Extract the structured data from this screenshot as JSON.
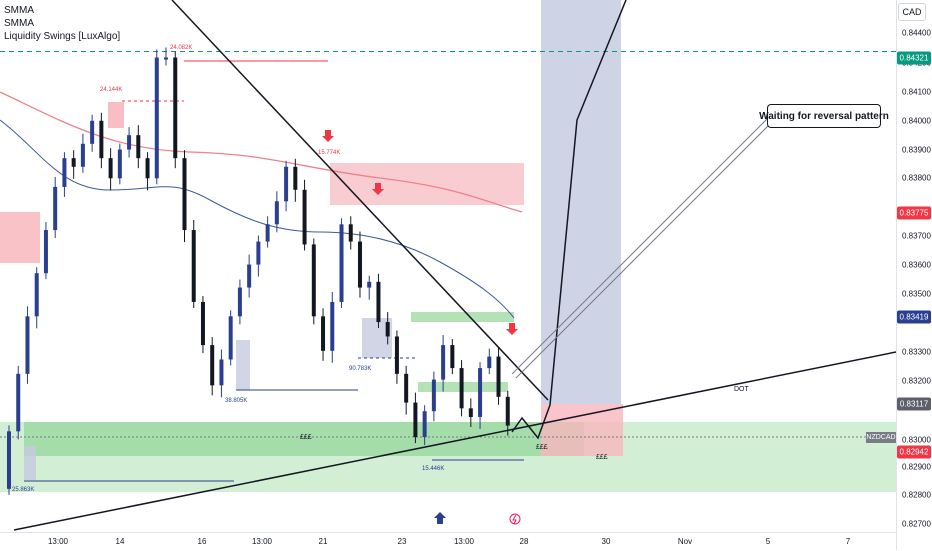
{
  "legend": {
    "line1": "SMMA",
    "line2": "SMMA",
    "line3": "Liquidity Swings [LuxAlgo]"
  },
  "callout": {
    "text": "Waiting for reversal pattern"
  },
  "price_axis": {
    "currency": "CAD",
    "ticks": [
      "0.84400",
      "0.84200",
      "0.84100",
      "0.84000",
      "0.83900",
      "0.83800",
      "0.83700",
      "0.83600",
      "0.83500",
      "0.83300",
      "0.83200",
      "0.83000",
      "0.82900",
      "0.82800",
      "0.82700"
    ],
    "badges": [
      {
        "label": "0.84321",
        "color": "#089981"
      },
      {
        "label": "0.83775",
        "color": "#f23645"
      },
      {
        "label": "0.83419",
        "color": "#2a3f8f"
      },
      {
        "label": "0.83117",
        "color": "#5d606b"
      },
      {
        "label": "0.82942",
        "color": "#f23645"
      }
    ]
  },
  "time_axis": {
    "labels": [
      "13:00",
      "14",
      "16",
      "13:00",
      "21",
      "23",
      "13:00",
      "28",
      "30",
      "Nov",
      "5",
      "7"
    ]
  },
  "annotations": {
    "swing_highs": [
      "24.082K",
      "24.144K",
      "15.774K"
    ],
    "swing_lows": [
      "38.805K",
      "90.783K",
      "25.863K",
      "15.446K"
    ],
    "liquidity_marks": [
      "£££",
      "£££",
      "£££"
    ],
    "trendline_label": "DOT",
    "symbol": "NZDCAD"
  },
  "colors": {
    "bull": "#2a3f8f",
    "bear": "#131722",
    "smma_red": "#f0808a",
    "smma_blue": "#3d5a99",
    "supply_zone": "#f7b7bd",
    "demand_zone": "#7fcf86",
    "projection": "#c6cbe0"
  },
  "chart_data": {
    "type": "candlestick",
    "symbol": "NZDCAD",
    "price_range": [
      0.8265,
      0.845
    ],
    "ohlc_path": [
      0.828,
      0.83,
      0.832,
      0.834,
      0.8355,
      0.837,
      0.8385,
      0.8395,
      0.8392,
      0.84,
      0.8408,
      0.8395,
      0.8388,
      0.8398,
      0.8403,
      0.8395,
      0.8388,
      0.843,
      0.843,
      0.8395,
      0.837,
      0.8345,
      0.833,
      0.8316,
      0.8325,
      0.834,
      0.835,
      0.8358,
      0.8366,
      0.8372,
      0.838,
      0.8392,
      0.8384,
      0.8365,
      0.834,
      0.8328,
      0.8345,
      0.8372,
      0.8366,
      0.835,
      0.8352,
      0.8338,
      0.8333,
      0.832,
      0.831,
      0.8298,
      0.8307,
      0.8318,
      0.833,
      0.8322,
      0.8308,
      0.8305,
      0.8322,
      0.8326,
      0.8312,
      0.8302
    ],
    "levels": {
      "green_dashed": 0.84321,
      "red_level": 0.83775,
      "smma_level": 0.83419,
      "grey_level": 0.83117,
      "current": 0.82942
    },
    "series": [
      {
        "name": "SMMA"
      },
      {
        "name": "SMMA"
      }
    ]
  }
}
